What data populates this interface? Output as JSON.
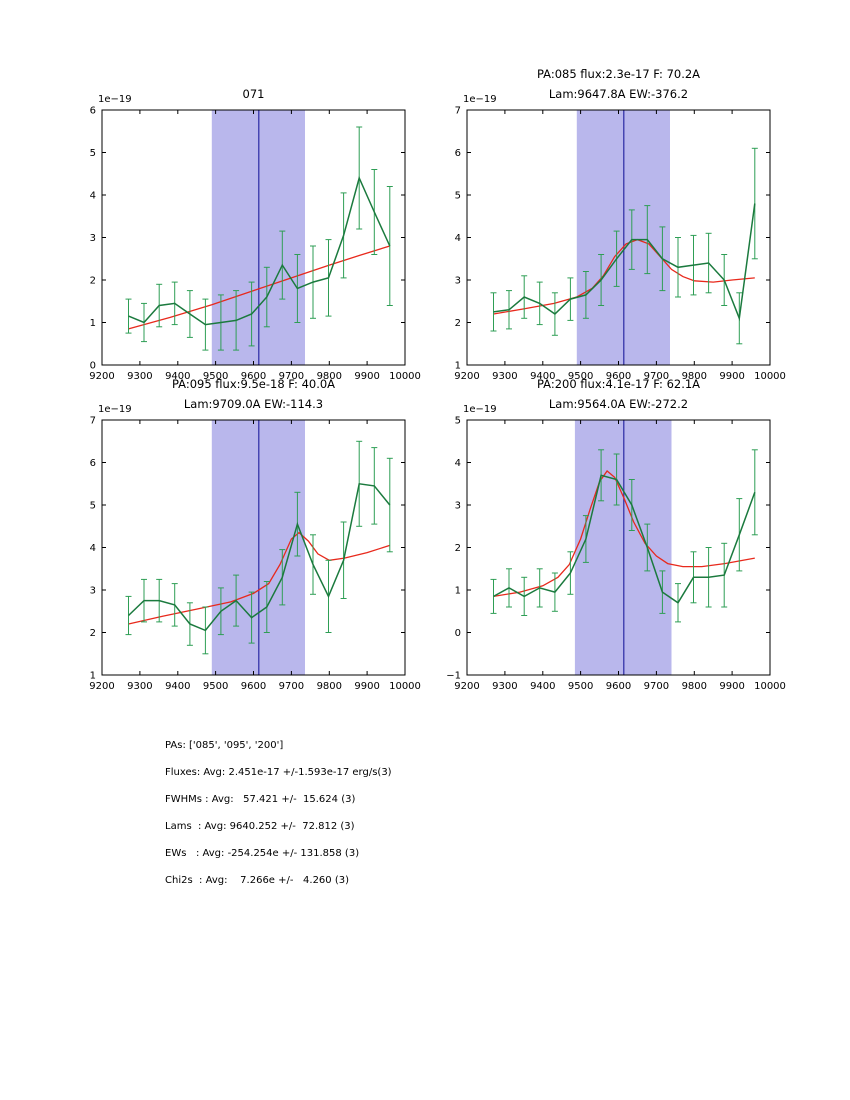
{
  "style": {
    "background": "#ffffff",
    "band_color": "#b9b7ec",
    "vline_color": "#2929a3",
    "data_color": "#1b7a3e",
    "err_color": "#2e9e55",
    "fit_color": "#e8291c",
    "axis_color": "#000000"
  },
  "chart_data": [
    {
      "type": "line",
      "title_lines": [
        "071"
      ],
      "xlabel": "",
      "ylabel": "",
      "offset_label": "1e−19",
      "xlim": [
        9200,
        10000
      ],
      "ylim": [
        0,
        6
      ],
      "xticks": [
        9200,
        9300,
        9400,
        9500,
        9600,
        9700,
        9800,
        9900,
        10000
      ],
      "yticks": [
        0,
        1,
        2,
        3,
        4,
        5,
        6
      ],
      "band": [
        9490,
        9736
      ],
      "vline": 9614,
      "series": {
        "name": "spectrum",
        "x": [
          9270,
          9311,
          9351,
          9392,
          9432,
          9473,
          9514,
          9554,
          9595,
          9635,
          9676,
          9716,
          9757,
          9798,
          9838,
          9879,
          9919,
          9960
        ],
        "y": [
          1.15,
          1.0,
          1.4,
          1.45,
          1.2,
          0.95,
          1.0,
          1.05,
          1.2,
          1.6,
          2.35,
          1.8,
          1.95,
          2.05,
          3.05,
          4.4,
          3.6,
          2.8
        ],
        "yerr": [
          0.4,
          0.45,
          0.5,
          0.5,
          0.55,
          0.6,
          0.65,
          0.7,
          0.75,
          0.7,
          0.8,
          0.8,
          0.85,
          0.9,
          1.0,
          1.2,
          1.0,
          1.4
        ]
      },
      "fit": {
        "name": "continuum-fit",
        "x": [
          9270,
          9380,
          9490,
          9600,
          9700,
          9800,
          9880,
          9960
        ],
        "y": [
          0.85,
          1.12,
          1.42,
          1.75,
          2.05,
          2.35,
          2.58,
          2.8
        ]
      }
    },
    {
      "type": "line",
      "title_lines": [
        "PA:085 flux:2.3e-17 F: 70.2A",
        "Lam:9647.8A EW:-376.2"
      ],
      "xlabel": "",
      "ylabel": "",
      "offset_label": "1e−19",
      "xlim": [
        9200,
        10000
      ],
      "ylim": [
        1,
        7
      ],
      "xticks": [
        9200,
        9300,
        9400,
        9500,
        9600,
        9700,
        9800,
        9900,
        10000
      ],
      "yticks": [
        1,
        2,
        3,
        4,
        5,
        6,
        7
      ],
      "band": [
        9490,
        9736
      ],
      "vline": 9614,
      "series": {
        "name": "spectrum",
        "x": [
          9270,
          9311,
          9351,
          9392,
          9432,
          9473,
          9514,
          9554,
          9595,
          9635,
          9676,
          9716,
          9757,
          9798,
          9838,
          9879,
          9919,
          9960
        ],
        "y": [
          2.25,
          2.3,
          2.6,
          2.45,
          2.2,
          2.55,
          2.65,
          3.0,
          3.5,
          3.95,
          3.95,
          3.5,
          3.3,
          3.35,
          3.4,
          3.0,
          2.1,
          4.8
        ],
        "yerr": [
          0.45,
          0.45,
          0.5,
          0.5,
          0.5,
          0.5,
          0.55,
          0.6,
          0.65,
          0.7,
          0.8,
          0.75,
          0.7,
          0.7,
          0.7,
          0.6,
          0.6,
          1.3
        ]
      },
      "fit": {
        "name": "gaussian-fit",
        "x": [
          9270,
          9350,
          9430,
          9490,
          9530,
          9560,
          9590,
          9620,
          9650,
          9680,
          9710,
          9740,
          9770,
          9800,
          9850,
          9900,
          9960
        ],
        "y": [
          2.2,
          2.32,
          2.45,
          2.6,
          2.8,
          3.1,
          3.55,
          3.85,
          3.95,
          3.85,
          3.55,
          3.25,
          3.08,
          2.98,
          2.95,
          3.0,
          3.05
        ]
      }
    },
    {
      "type": "line",
      "title_lines": [
        "PA:095 flux:9.5e-18 F: 40.0A",
        "Lam:9709.0A EW:-114.3"
      ],
      "xlabel": "",
      "ylabel": "",
      "offset_label": "1e−19",
      "xlim": [
        9200,
        10000
      ],
      "ylim": [
        1,
        7
      ],
      "xticks": [
        9200,
        9300,
        9400,
        9500,
        9600,
        9700,
        9800,
        9900,
        10000
      ],
      "yticks": [
        1,
        2,
        3,
        4,
        5,
        6,
        7
      ],
      "band": [
        9490,
        9736
      ],
      "vline": 9614,
      "series": {
        "name": "spectrum",
        "x": [
          9270,
          9311,
          9351,
          9392,
          9432,
          9473,
          9514,
          9554,
          9595,
          9635,
          9676,
          9716,
          9757,
          9798,
          9838,
          9879,
          9919,
          9960
        ],
        "y": [
          2.4,
          2.75,
          2.75,
          2.65,
          2.2,
          2.05,
          2.5,
          2.75,
          2.35,
          2.6,
          3.3,
          4.55,
          3.6,
          2.85,
          3.7,
          5.5,
          5.45,
          5.0
        ],
        "yerr": [
          0.45,
          0.5,
          0.5,
          0.5,
          0.5,
          0.55,
          0.55,
          0.6,
          0.6,
          0.6,
          0.65,
          0.75,
          0.7,
          0.85,
          0.9,
          1.0,
          0.9,
          1.1
        ]
      },
      "fit": {
        "name": "gaussian-fit",
        "x": [
          9270,
          9360,
          9450,
          9540,
          9600,
          9640,
          9670,
          9700,
          9720,
          9745,
          9770,
          9800,
          9840,
          9900,
          9960
        ],
        "y": [
          2.2,
          2.38,
          2.55,
          2.72,
          2.92,
          3.15,
          3.6,
          4.2,
          4.35,
          4.15,
          3.85,
          3.7,
          3.75,
          3.88,
          4.05
        ]
      }
    },
    {
      "type": "line",
      "title_lines": [
        "PA:200 flux:4.1e-17 F: 62.1A",
        "Lam:9564.0A EW:-272.2"
      ],
      "xlabel": "",
      "ylabel": "",
      "offset_label": "1e−19",
      "xlim": [
        9200,
        10000
      ],
      "ylim": [
        -1,
        5
      ],
      "xticks": [
        9200,
        9300,
        9400,
        9500,
        9600,
        9700,
        9800,
        9900,
        10000
      ],
      "yticks": [
        -1,
        0,
        1,
        2,
        3,
        4,
        5
      ],
      "band": [
        9485,
        9740
      ],
      "vline": 9614,
      "series": {
        "name": "spectrum",
        "x": [
          9270,
          9311,
          9351,
          9392,
          9432,
          9473,
          9514,
          9554,
          9595,
          9635,
          9676,
          9716,
          9757,
          9798,
          9838,
          9879,
          9919,
          9960
        ],
        "y": [
          0.85,
          1.05,
          0.85,
          1.05,
          0.95,
          1.4,
          2.2,
          3.7,
          3.6,
          3.0,
          2.0,
          0.95,
          0.7,
          1.3,
          1.3,
          1.35,
          2.3,
          3.3
        ],
        "yerr": [
          0.4,
          0.45,
          0.45,
          0.45,
          0.45,
          0.5,
          0.55,
          0.6,
          0.6,
          0.6,
          0.55,
          0.5,
          0.45,
          0.6,
          0.7,
          0.75,
          0.85,
          1.0
        ]
      },
      "fit": {
        "name": "gaussian-fit",
        "x": [
          9270,
          9340,
          9400,
          9440,
          9470,
          9500,
          9525,
          9550,
          9570,
          9590,
          9615,
          9640,
          9670,
          9700,
          9730,
          9770,
          9820,
          9880,
          9960
        ],
        "y": [
          0.85,
          0.95,
          1.1,
          1.3,
          1.6,
          2.2,
          2.9,
          3.55,
          3.8,
          3.65,
          3.15,
          2.6,
          2.1,
          1.8,
          1.62,
          1.55,
          1.55,
          1.62,
          1.75
        ]
      }
    }
  ],
  "summary": {
    "lines": [
      "PAs: ['085', '095', '200']",
      "Fluxes: Avg: 2.451e-17 +/-1.593e-17 erg/s(3)",
      "FWHMs : Avg:   57.421 +/-  15.624 (3)",
      "Lams  : Avg: 9640.252 +/-  72.812 (3)",
      "EWs   : Avg: -254.254e +/- 131.858 (3)",
      "Chi2s  : Avg:    7.266e +/-   4.260 (3)"
    ]
  }
}
